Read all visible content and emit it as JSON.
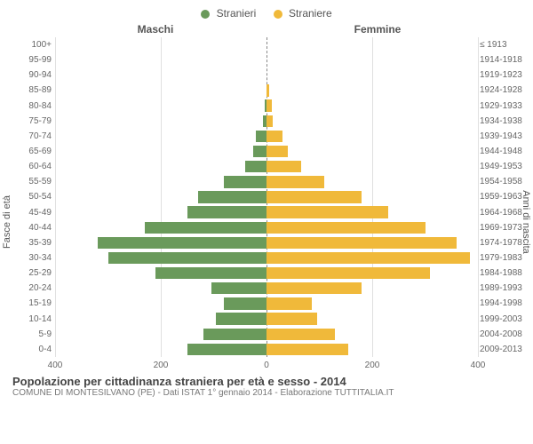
{
  "legend": {
    "male_label": "Stranieri",
    "female_label": "Straniere",
    "male_color": "#6a9a5b",
    "female_color": "#f0b93a"
  },
  "headers": {
    "left": "Maschi",
    "right": "Femmine"
  },
  "axes": {
    "left_title": "Fasce di età",
    "right_title": "Anni di nascita",
    "xmax": 400,
    "xticks": [
      400,
      200,
      0,
      200,
      400
    ],
    "xtick_labels": [
      "400",
      "200",
      "0",
      "200",
      "400"
    ],
    "grid_color": "#e0e0e0",
    "center_color": "#888888",
    "background": "#ffffff"
  },
  "bars": {
    "male_color": "#6a9a5b",
    "female_color": "#f0b93a",
    "height_ratio": 0.78
  },
  "rows": [
    {
      "age": "100+",
      "birth": "≤ 1913",
      "m": 0,
      "f": 0
    },
    {
      "age": "95-99",
      "birth": "1914-1918",
      "m": 0,
      "f": 0
    },
    {
      "age": "90-94",
      "birth": "1919-1923",
      "m": 0,
      "f": 0
    },
    {
      "age": "85-89",
      "birth": "1924-1928",
      "m": 0,
      "f": 5
    },
    {
      "age": "80-84",
      "birth": "1929-1933",
      "m": 4,
      "f": 10
    },
    {
      "age": "75-79",
      "birth": "1934-1938",
      "m": 6,
      "f": 12
    },
    {
      "age": "70-74",
      "birth": "1939-1943",
      "m": 20,
      "f": 30
    },
    {
      "age": "65-69",
      "birth": "1944-1948",
      "m": 25,
      "f": 40
    },
    {
      "age": "60-64",
      "birth": "1949-1953",
      "m": 40,
      "f": 65
    },
    {
      "age": "55-59",
      "birth": "1954-1958",
      "m": 80,
      "f": 110
    },
    {
      "age": "50-54",
      "birth": "1959-1963",
      "m": 130,
      "f": 180
    },
    {
      "age": "45-49",
      "birth": "1964-1968",
      "m": 150,
      "f": 230
    },
    {
      "age": "40-44",
      "birth": "1969-1973",
      "m": 230,
      "f": 300
    },
    {
      "age": "35-39",
      "birth": "1974-1978",
      "m": 320,
      "f": 360
    },
    {
      "age": "30-34",
      "birth": "1979-1983",
      "m": 300,
      "f": 385
    },
    {
      "age": "25-29",
      "birth": "1984-1988",
      "m": 210,
      "f": 310
    },
    {
      "age": "20-24",
      "birth": "1989-1993",
      "m": 105,
      "f": 180
    },
    {
      "age": "15-19",
      "birth": "1994-1998",
      "m": 80,
      "f": 85
    },
    {
      "age": "10-14",
      "birth": "1999-2003",
      "m": 95,
      "f": 95
    },
    {
      "age": "5-9",
      "birth": "2004-2008",
      "m": 120,
      "f": 130
    },
    {
      "age": "0-4",
      "birth": "2009-2013",
      "m": 150,
      "f": 155
    }
  ],
  "footer": {
    "title": "Popolazione per cittadinanza straniera per età e sesso - 2014",
    "subtitle": "COMUNE DI MONTESILVANO (PE) - Dati ISTAT 1° gennaio 2014 - Elaborazione TUTTITALIA.IT"
  }
}
